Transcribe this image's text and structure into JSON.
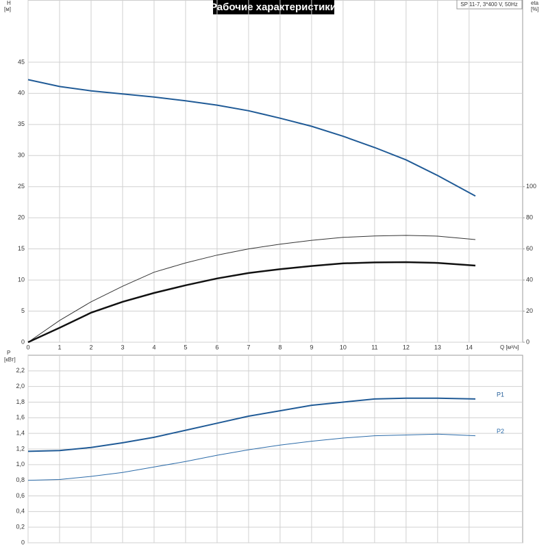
{
  "chart_data": [
    {
      "type": "line",
      "title": "Рабочие характеристики",
      "subtitle": "SP 11-7, 3*400 V, 50Hz",
      "x_label": "Q [м³/ч]",
      "y_label": "H",
      "y_unit": "[м]",
      "y2_label": "eta",
      "y2_unit": "[%]",
      "x": [
        0,
        1,
        2,
        3,
        4,
        5,
        6,
        7,
        8,
        9,
        10,
        11,
        12,
        13,
        14.2
      ],
      "xlim": [
        0,
        15.7
      ],
      "xticks": [
        0,
        1,
        2,
        3,
        4,
        5,
        6,
        7,
        8,
        9,
        10,
        11,
        12,
        13,
        14
      ],
      "ylim": [
        0,
        55
      ],
      "yticks": [
        0,
        5,
        10,
        15,
        20,
        25,
        30,
        35,
        40,
        45
      ],
      "y2lim": [
        0,
        220
      ],
      "y2ticks": [
        0,
        20,
        40,
        60,
        80,
        100
      ],
      "grid": true,
      "series": [
        {
          "color": "#1f5a96",
          "values": [
            42.2,
            41.1,
            40.4,
            39.9,
            39.4,
            38.8,
            38.1,
            37.2,
            36.0,
            34.7,
            33.1,
            31.3,
            29.3,
            26.8,
            23.5
          ]
        },
        {
          "color": "#333333",
          "axis": "y2",
          "values": [
            0,
            14,
            26,
            36,
            45,
            51,
            56,
            60,
            63,
            65.5,
            67.4,
            68.3,
            68.7,
            68.2,
            66
          ]
        },
        {
          "color": "#111111",
          "axis": "y2",
          "values": [
            0,
            9.3,
            19,
            26,
            31.7,
            36.6,
            41,
            44.5,
            47,
            49,
            50.7,
            51.3,
            51.5,
            51,
            49.3
          ]
        }
      ]
    },
    {
      "type": "line",
      "y_label": "P",
      "y_unit": "[кВт]",
      "x": [
        0,
        1,
        2,
        3,
        4,
        5,
        6,
        7,
        8,
        9,
        10,
        11,
        12,
        13,
        14.2
      ],
      "xlim": [
        0,
        15.7
      ],
      "ylim": [
        0,
        2.4
      ],
      "yticks": [
        0,
        {
          "value": 0.2,
          "label": "0,2"
        },
        {
          "value": 0.4,
          "label": "0,4"
        },
        {
          "value": 0.6,
          "label": "0,6"
        },
        {
          "value": 0.8,
          "label": "0,8"
        },
        {
          "value": 1.0,
          "label": "1,0"
        },
        {
          "value": 1.2,
          "label": "1,2"
        },
        {
          "value": 1.4,
          "label": "1,4"
        },
        {
          "value": 1.6,
          "label": "1,6"
        },
        {
          "value": 1.8,
          "label": "1,8"
        },
        {
          "value": 2.0,
          "label": "2,0"
        },
        {
          "value": 2.2,
          "label": "2,2"
        }
      ],
      "grid": true,
      "series": [
        {
          "name": "P1",
          "color": "#1f5a96",
          "values": [
            1.17,
            1.18,
            1.22,
            1.28,
            1.35,
            1.44,
            1.53,
            1.62,
            1.69,
            1.76,
            1.8,
            1.84,
            1.85,
            1.85,
            1.84
          ]
        },
        {
          "name": "P2",
          "color": "#2a6aa8",
          "values": [
            0.8,
            0.81,
            0.85,
            0.9,
            0.97,
            1.04,
            1.12,
            1.19,
            1.25,
            1.3,
            1.34,
            1.37,
            1.38,
            1.39,
            1.37
          ]
        }
      ]
    }
  ]
}
